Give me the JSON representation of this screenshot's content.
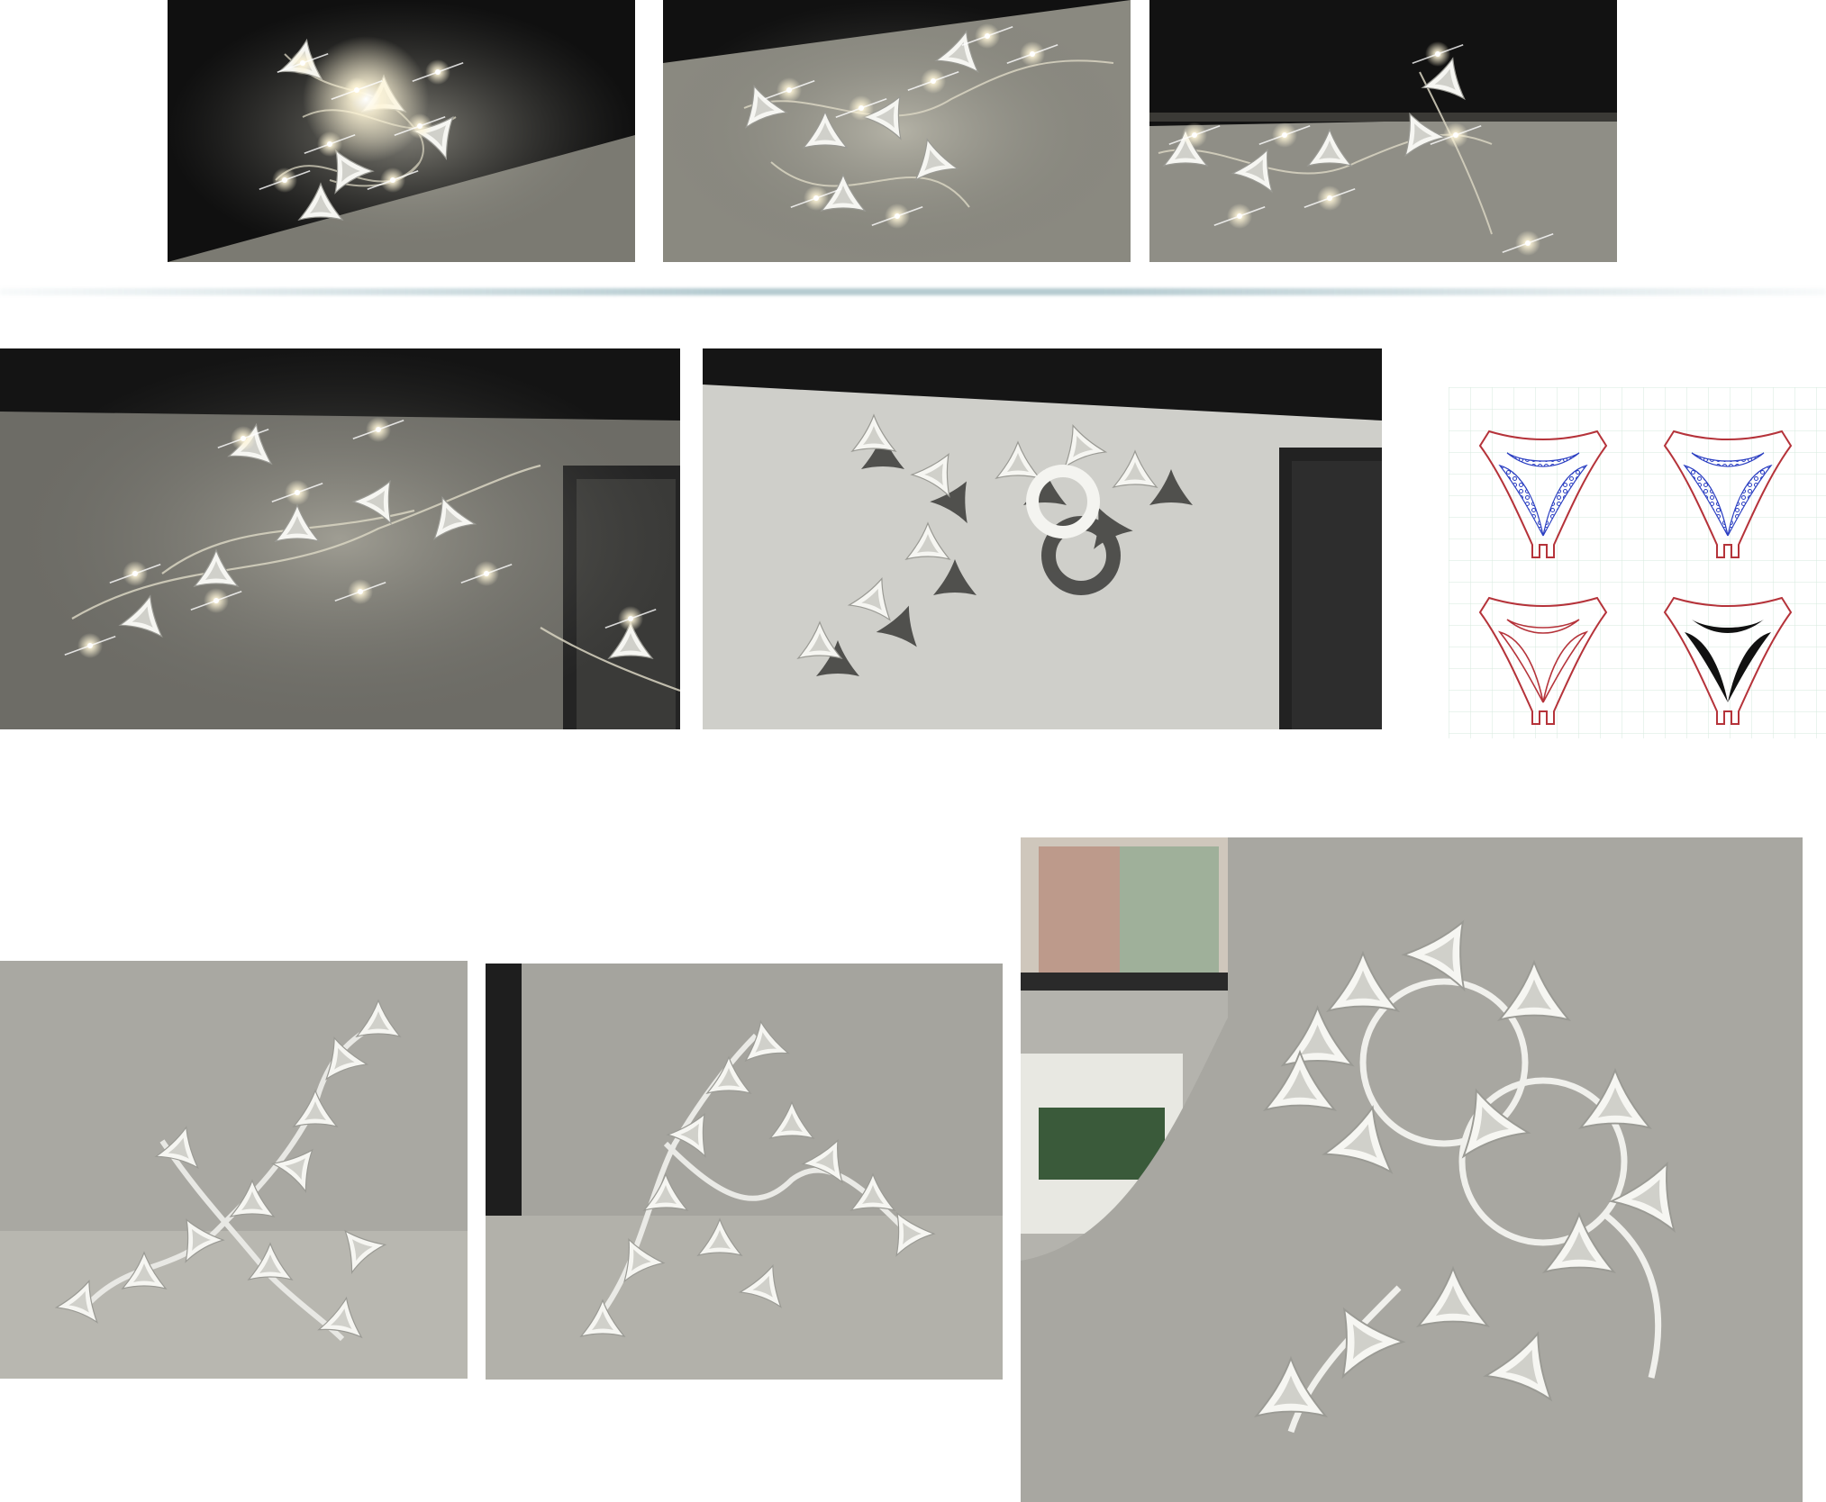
{
  "colors": {
    "dark_background": "#121212",
    "glow": "#fff8dc",
    "plastic_white": "#f4f4f0",
    "wall_gray": "#c9c9c4",
    "paper_gray": "#a9a8a2",
    "cut_line_red": "#b5333a",
    "engrave_blue": "#2b3fc2",
    "fill_black": "#111111",
    "grid_line": "#d6eadc"
  },
  "photos": [
    {
      "name": "lit-garland-photo-1",
      "subject": "glowing-sculpture"
    },
    {
      "name": "lit-garland-photo-2",
      "subject": "glowing-sculpture"
    },
    {
      "name": "lit-garland-photo-3",
      "subject": "glowing-sculpture"
    },
    {
      "name": "lit-garland-photo-4",
      "subject": "glowing-sculpture"
    },
    {
      "name": "wall-shadow-photo",
      "subject": "shadow-pattern"
    },
    {
      "name": "cutting-pattern-drawing",
      "subject": "laser-cut-template"
    },
    {
      "name": "tabletop-model-photo-1",
      "subject": "white-model"
    },
    {
      "name": "tabletop-model-photo-2",
      "subject": "white-model"
    },
    {
      "name": "tabletop-model-photo-3",
      "subject": "white-model"
    }
  ]
}
